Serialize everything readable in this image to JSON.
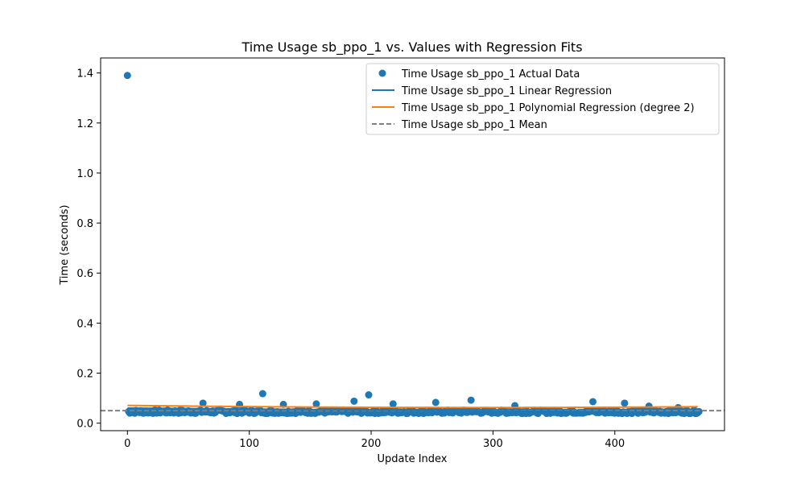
{
  "chart_data": {
    "type": "scatter",
    "title": "Time Usage sb_ppo_1 vs. Values with Regression Fits",
    "xlabel": "Update Index",
    "ylabel": "Time (seconds)",
    "xlim": [
      -22,
      490
    ],
    "ylim": [
      -0.03,
      1.46
    ],
    "xticks": [
      0,
      100,
      200,
      300,
      400
    ],
    "yticks": [
      0.0,
      0.2,
      0.4,
      0.6,
      0.8,
      1.0,
      1.2,
      1.4
    ],
    "grid": false,
    "legend_position": "top-right",
    "x_count": 470,
    "outliers": [
      {
        "x": 0,
        "y": 1.39
      },
      {
        "x": 62,
        "y": 0.08
      },
      {
        "x": 92,
        "y": 0.075
      },
      {
        "x": 111,
        "y": 0.118
      },
      {
        "x": 128,
        "y": 0.075
      },
      {
        "x": 155,
        "y": 0.077
      },
      {
        "x": 186,
        "y": 0.088
      },
      {
        "x": 198,
        "y": 0.113
      },
      {
        "x": 218,
        "y": 0.077
      },
      {
        "x": 253,
        "y": 0.083
      },
      {
        "x": 282,
        "y": 0.092
      },
      {
        "x": 318,
        "y": 0.07
      },
      {
        "x": 382,
        "y": 0.086
      },
      {
        "x": 408,
        "y": 0.08
      },
      {
        "x": 428,
        "y": 0.068
      },
      {
        "x": 452,
        "y": 0.062
      }
    ],
    "series": [
      {
        "name": "Time Usage sb_ppo_1 Actual Data",
        "kind": "scatter",
        "color": "#1f77b4",
        "typical_min": 0.035,
        "typical_max": 0.06
      },
      {
        "name": "Time Usage sb_ppo_1 Linear Regression",
        "kind": "line",
        "color": "#1f77b4",
        "points": [
          {
            "x": 0,
            "y": 0.06
          },
          {
            "x": 469,
            "y": 0.043
          }
        ]
      },
      {
        "name": "Time Usage sb_ppo_1 Polynomial Regression (degree 2)",
        "kind": "line",
        "color": "#ff7f0e",
        "coefficients": {
          "a": 1e-07,
          "b": -5.8e-05,
          "c": 0.071
        }
      },
      {
        "name": "Time Usage sb_ppo_1 Mean",
        "kind": "hline",
        "color": "#808080",
        "dash": true,
        "y": 0.05
      }
    ]
  }
}
